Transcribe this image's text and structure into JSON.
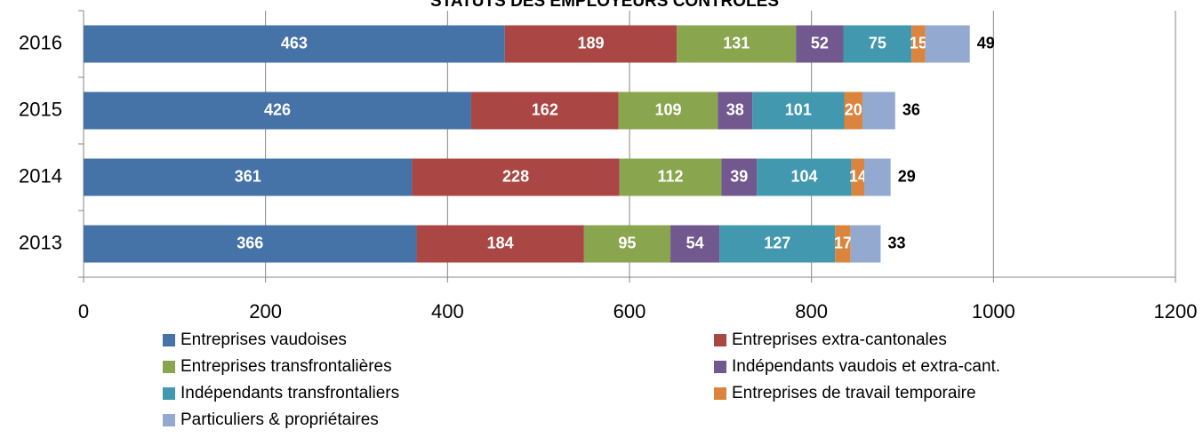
{
  "chart_data": {
    "type": "stacked_barh",
    "title": "STATUTS DES EMPLOYEURS CONTRÔLÉS",
    "categories": [
      "2016",
      "2015",
      "2014",
      "2013"
    ],
    "series": [
      {
        "name": "Entreprises vaudoises",
        "color": "#4572a7",
        "values": [
          463,
          426,
          361,
          366
        ]
      },
      {
        "name": "Entreprises extra-cantonales",
        "color": "#aa4643",
        "values": [
          189,
          162,
          228,
          184
        ]
      },
      {
        "name": "Entreprises transfrontalières",
        "color": "#89a54e",
        "values": [
          131,
          109,
          112,
          95
        ]
      },
      {
        "name": "Indépendants vaudois et extra-cant.",
        "color": "#71588f",
        "values": [
          52,
          38,
          39,
          54
        ]
      },
      {
        "name": "Indépendants transfrontaliers",
        "color": "#4198af",
        "values": [
          75,
          101,
          104,
          127
        ]
      },
      {
        "name": "Entreprises de travail temporaire",
        "color": "#db843d",
        "values": [
          15,
          20,
          14,
          17
        ]
      },
      {
        "name": "Particuliers & propriétaires",
        "color": "#93a9cf",
        "values": [
          49,
          36,
          29,
          33
        ]
      }
    ],
    "xlim": [
      0,
      1200
    ],
    "xticks": [
      0,
      200,
      400,
      600,
      800,
      1000,
      1200
    ],
    "grid": true,
    "legend": "bottom"
  }
}
